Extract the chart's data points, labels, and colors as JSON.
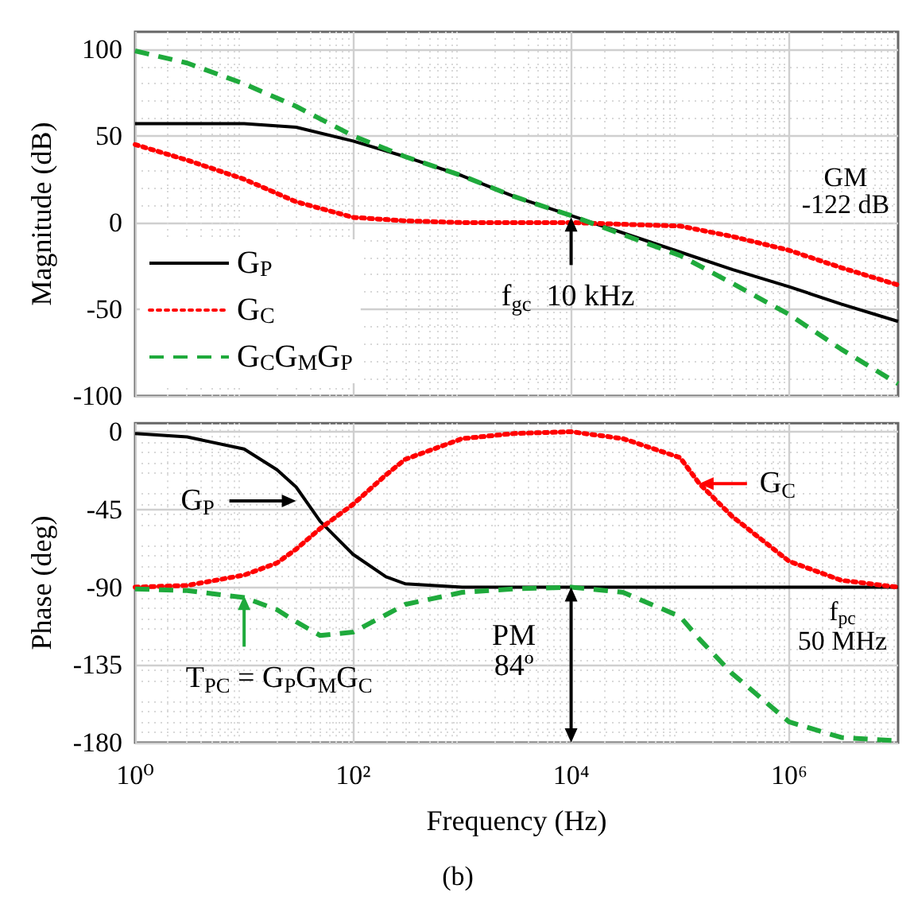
{
  "chart_data": [
    {
      "type": "line",
      "ylabel": "Magnitude (dB)",
      "x": [
        1,
        3,
        10,
        30,
        100,
        300,
        1000,
        3000,
        10000,
        30000,
        100000,
        300000,
        1000000,
        3000000,
        10000000
      ],
      "series": [
        {
          "name": "G$_{P}$",
          "color": "#000000",
          "line_style": "solid",
          "values": [
            57,
            57,
            57,
            55,
            47,
            38,
            27,
            15,
            4,
            -6,
            -17,
            -27,
            -37,
            -47,
            -57
          ]
        },
        {
          "name": "G$_{C}$",
          "color": "#ff0000",
          "line_style": "dotted",
          "values": [
            45,
            36,
            25,
            12,
            3,
            1,
            0,
            0,
            0,
            -1,
            -2,
            -8,
            -16,
            -26,
            -36
          ]
        },
        {
          "name": "G$_{C}$G$_{M}$G$_{P}$",
          "color": "#1faa3c",
          "line_style": "dashed",
          "values": [
            99,
            92,
            80,
            67,
            50,
            38,
            27,
            15,
            4,
            -7,
            -19,
            -35,
            -53,
            -73,
            -93
          ]
        }
      ],
      "log": "x",
      "xlim": [
        1,
        10000000
      ],
      "xticks": [
        {
          "value": 1,
          "label": null
        },
        {
          "value": 100,
          "label": null
        },
        {
          "value": 10000,
          "label": null
        },
        {
          "value": 1000000,
          "label": null
        }
      ],
      "ylim": [
        -100,
        110
      ],
      "yticks": [
        -100,
        -50,
        0,
        50,
        100
      ],
      "tick_labels": "y",
      "grid": true,
      "legend": "bottom left",
      "marker": "none",
      "annotations": [
        "GM\n-122 dB",
        {
          "text": "f$_{gc}$  10 kHz",
          "x": 10000,
          "y": 3
        }
      ]
    },
    {
      "type": "line",
      "ylabel": "Phase (deg)",
      "xlabel": "Frequency (Hz)",
      "x": [
        1,
        3,
        10,
        20,
        30,
        50,
        100,
        200,
        300,
        1000,
        3000,
        10000,
        30000,
        100000,
        150000,
        300000,
        1000000,
        3000000,
        10000000
      ],
      "series": [
        {
          "color": "#000000",
          "line_style": "solid",
          "values": [
            -1,
            -3,
            -10,
            -22,
            -32,
            -52,
            -71,
            -84,
            -88,
            -90,
            -90,
            -90,
            -90,
            -90,
            -90,
            -90,
            -90,
            -90,
            -90
          ]
        },
        {
          "color": "#ff0000",
          "line_style": "dotted",
          "values": [
            -90,
            -89,
            -83,
            -76,
            -68,
            -56,
            -42,
            -25,
            -16,
            -4,
            -1,
            0,
            -4,
            -15,
            -30,
            -49,
            -75,
            -86,
            -90
          ]
        },
        {
          "color": "#1faa3c",
          "line_style": "dashed",
          "values": [
            -91,
            -92,
            -96,
            -103,
            -110,
            -118,
            -116,
            -106,
            -100,
            -93,
            -91,
            -90,
            -93,
            -107,
            -120,
            -140,
            -168,
            -177,
            -179
          ]
        }
      ],
      "log": "x",
      "xlim": [
        1,
        10000000
      ],
      "xticks": [
        {
          "value": 1,
          "label": "10⁰"
        },
        {
          "value": 100,
          "label": "10²"
        },
        {
          "value": 10000,
          "label": "10⁴"
        },
        {
          "value": 1000000,
          "label": "10⁶"
        }
      ],
      "ylim": [
        -180,
        5
      ],
      "yticks": [
        -180,
        -135,
        -90,
        -45,
        0
      ],
      "grid": true,
      "marker": "none",
      "annotations": [
        {
          "text": "G$_{P}$",
          "x": 30,
          "y": -40
        },
        {
          "text": "G$_{C}$",
          "x": 150000,
          "y": -30
        },
        {
          "text": "T$_{PC}$ = G$_{P}$G$_{M}$G$_{C}$",
          "x": 10,
          "y": -95
        },
        {
          "text": "PM\n84º",
          "x": 10000,
          "y": -90
        },
        "f$_{pc}$\n50 MHz",
        "(b)"
      ]
    }
  ]
}
